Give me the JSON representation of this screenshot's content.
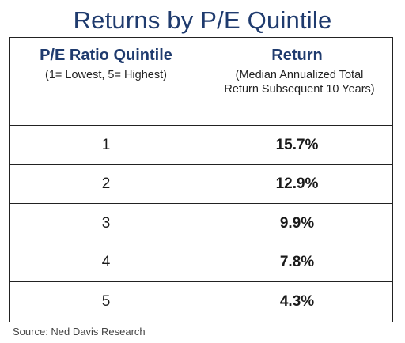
{
  "title": "Returns by P/E Quintile",
  "table": {
    "col1_header": "P/E Ratio Quintile",
    "col1_sub": "(1= Lowest, 5= Highest)",
    "col2_header": "Return",
    "col2_sub": "(Median Annualized Total Return Subsequent 10 Years)",
    "rows": [
      {
        "quintile": "1",
        "return": "15.7%"
      },
      {
        "quintile": "2",
        "return": "12.9%"
      },
      {
        "quintile": "3",
        "return": "9.9%"
      },
      {
        "quintile": "4",
        "return": "7.8%"
      },
      {
        "quintile": "5",
        "return": "4.3%"
      }
    ]
  },
  "source": "Source: Ned Davis Research",
  "colors": {
    "title": "#1f3b6e",
    "border": "#222222"
  }
}
